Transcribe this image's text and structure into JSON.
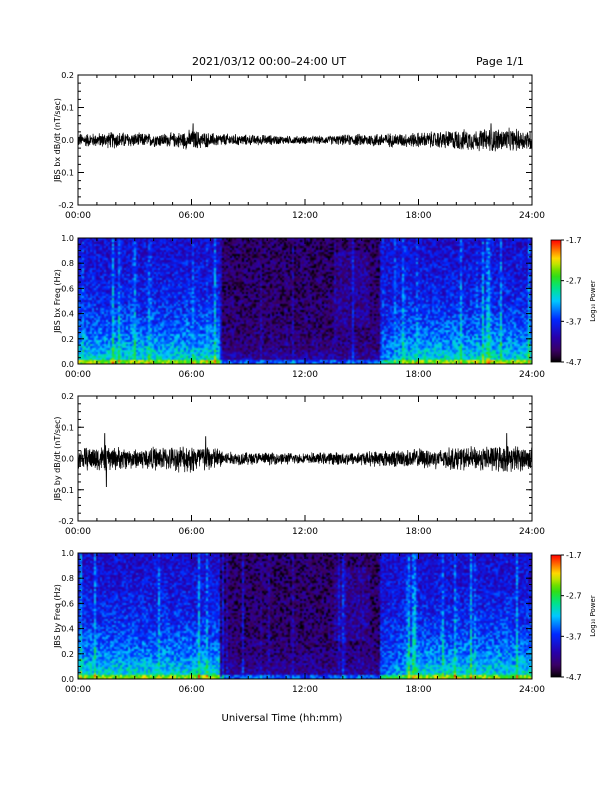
{
  "header": {
    "title": "2021/03/12  00:00–24:00 UT",
    "page": "Page 1/1"
  },
  "chart_data": [
    {
      "type": "line",
      "title": "",
      "ylabel": "JBS bx dB/dt (nT/sec)",
      "xlabel": "",
      "x_ticks": [
        "00:00",
        "06:00",
        "12:00",
        "18:00",
        "24:00"
      ],
      "xlim": [
        "00:00",
        "24:00"
      ],
      "ylim": [
        -0.2,
        0.2
      ],
      "y_ticks": [
        "0.2",
        "0.1",
        "0.0",
        "-0.1",
        "-0.2"
      ],
      "series": [
        {
          "x": [
            "00:00",
            "01:00",
            "02:00",
            "03:00",
            "04:00",
            "05:00",
            "06:00",
            "07:00",
            "08:00",
            "09:00",
            "10:00",
            "11:00",
            "12:00",
            "13:00",
            "14:00",
            "15:00",
            "16:00",
            "17:00",
            "18:00",
            "19:00",
            "20:00",
            "21:00",
            "22:00",
            "23:00",
            "24:00"
          ],
          "envelope": [
            0.02,
            0.02,
            0.025,
            0.02,
            0.02,
            0.02,
            0.03,
            0.02,
            0.018,
            0.015,
            0.015,
            0.012,
            0.012,
            0.012,
            0.015,
            0.018,
            0.02,
            0.02,
            0.022,
            0.025,
            0.03,
            0.03,
            0.035,
            0.032,
            0.03
          ],
          "peaks": [
            {
              "x": "06:05",
              "y": 0.05
            },
            {
              "x": "21:50",
              "y": 0.05
            }
          ]
        }
      ],
      "grid": false
    },
    {
      "type": "heatmap",
      "title": "",
      "ylabel": "JBS bx Freq (Hz)",
      "xlabel": "",
      "x_ticks": [
        "00:00",
        "06:00",
        "12:00",
        "18:00",
        "24:00"
      ],
      "xlim": [
        "00:00",
        "24:00"
      ],
      "ylim": [
        0.0,
        1.0
      ],
      "y_ticks": [
        "1.0",
        "0.8",
        "0.6",
        "0.4",
        "0.2",
        "0.0"
      ],
      "colorbar": {
        "label": "Log₁₀ Power",
        "ticks": [
          "-1.7",
          "-2.7",
          "-3.7",
          "-4.7"
        ],
        "range": [
          -4.7,
          -1.7
        ]
      },
      "description_levels": {
        "high_activity_intervals": [
          [
            "00:00",
            "07:30"
          ],
          [
            "16:00",
            "24:00"
          ]
        ],
        "quiet_interval": [
          "07:30",
          "16:00"
        ]
      }
    },
    {
      "type": "line",
      "title": "",
      "ylabel": "JBS by dB/dt (nT/sec)",
      "xlabel": "",
      "x_ticks": [
        "00:00",
        "06:00",
        "12:00",
        "18:00",
        "24:00"
      ],
      "xlim": [
        "00:00",
        "24:00"
      ],
      "ylim": [
        -0.2,
        0.2
      ],
      "y_ticks": [
        "0.2",
        "0.1",
        "0.0",
        "-0.1",
        "-0.2"
      ],
      "series": [
        {
          "x": [
            "00:00",
            "01:00",
            "02:00",
            "03:00",
            "04:00",
            "05:00",
            "06:00",
            "07:00",
            "08:00",
            "09:00",
            "10:00",
            "11:00",
            "12:00",
            "13:00",
            "14:00",
            "15:00",
            "16:00",
            "17:00",
            "18:00",
            "19:00",
            "20:00",
            "21:00",
            "22:00",
            "23:00",
            "24:00"
          ],
          "envelope": [
            0.03,
            0.04,
            0.035,
            0.03,
            0.035,
            0.035,
            0.045,
            0.04,
            0.02,
            0.02,
            0.018,
            0.018,
            0.015,
            0.018,
            0.02,
            0.02,
            0.025,
            0.025,
            0.03,
            0.03,
            0.035,
            0.035,
            0.04,
            0.04,
            0.035
          ],
          "peaks": [
            {
              "x": "01:25",
              "y": 0.08
            },
            {
              "x": "01:30",
              "y": -0.09
            },
            {
              "x": "06:45",
              "y": 0.07
            },
            {
              "x": "22:40",
              "y": 0.08
            }
          ]
        }
      ],
      "grid": false
    },
    {
      "type": "heatmap",
      "title": "",
      "ylabel": "JBS by Freq (Hz)",
      "xlabel": "Universal Time (hh:mm)",
      "x_ticks": [
        "00:00",
        "06:00",
        "12:00",
        "18:00",
        "24:00"
      ],
      "xlim": [
        "00:00",
        "24:00"
      ],
      "ylim": [
        0.0,
        1.0
      ],
      "y_ticks": [
        "1.0",
        "0.8",
        "0.6",
        "0.4",
        "0.2",
        "0.0"
      ],
      "colorbar": {
        "label": "Log₁₀ Power",
        "ticks": [
          "-1.7",
          "-2.7",
          "-3.7",
          "-4.7"
        ],
        "range": [
          -4.7,
          -1.7
        ]
      },
      "description_levels": {
        "high_activity_intervals": [
          [
            "00:00",
            "07:30"
          ],
          [
            "16:00",
            "24:00"
          ]
        ],
        "quiet_interval": [
          "07:30",
          "16:00"
        ]
      }
    }
  ]
}
